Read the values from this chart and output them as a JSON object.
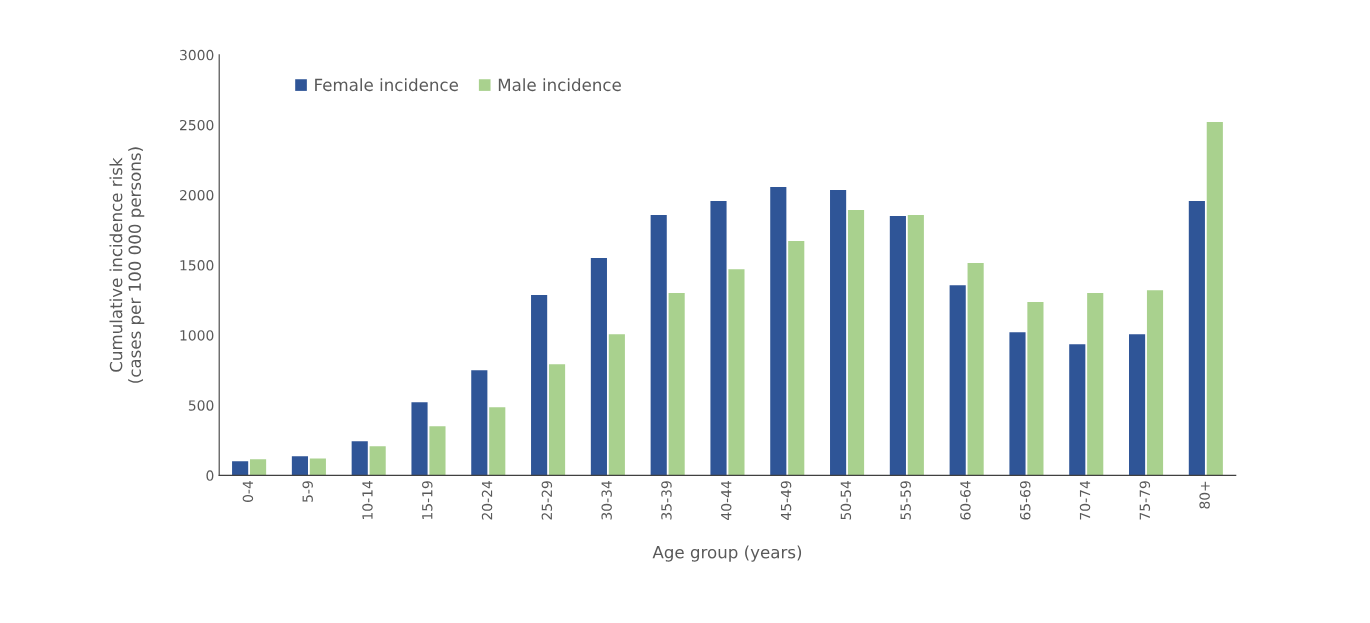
{
  "chart_data": {
    "type": "bar",
    "xlabel": "Age group (years)",
    "ylabel": "Cumulative incidence risk\n(cases per 100 000 persons)",
    "categories": [
      "0-4",
      "5-9",
      "10-14",
      "15-19",
      "20-24",
      "25-29",
      "30-34",
      "35-39",
      "40-44",
      "45-49",
      "50-54",
      "55-59",
      "60-64",
      "65-69",
      "70-74",
      "75-79",
      "80+"
    ],
    "series": [
      {
        "name": "Female incidence",
        "color": "#2f5597",
        "values": [
          100,
          136,
          243,
          521,
          750,
          1286,
          1550,
          1857,
          1957,
          2057,
          2036,
          1850,
          1357,
          1021,
          936,
          1007,
          1957
        ]
      },
      {
        "name": "Male incidence",
        "color": "#a9d18e",
        "values": [
          114,
          121,
          207,
          350,
          486,
          793,
          1007,
          1300,
          1471,
          1671,
          1893,
          1857,
          1514,
          1236,
          1300,
          1321,
          2521
        ]
      }
    ],
    "ylim": [
      0,
      3000
    ],
    "yticks": [
      0,
      500,
      1000,
      1500,
      2000,
      2500,
      3000
    ],
    "grid": false,
    "legend": "top left"
  }
}
